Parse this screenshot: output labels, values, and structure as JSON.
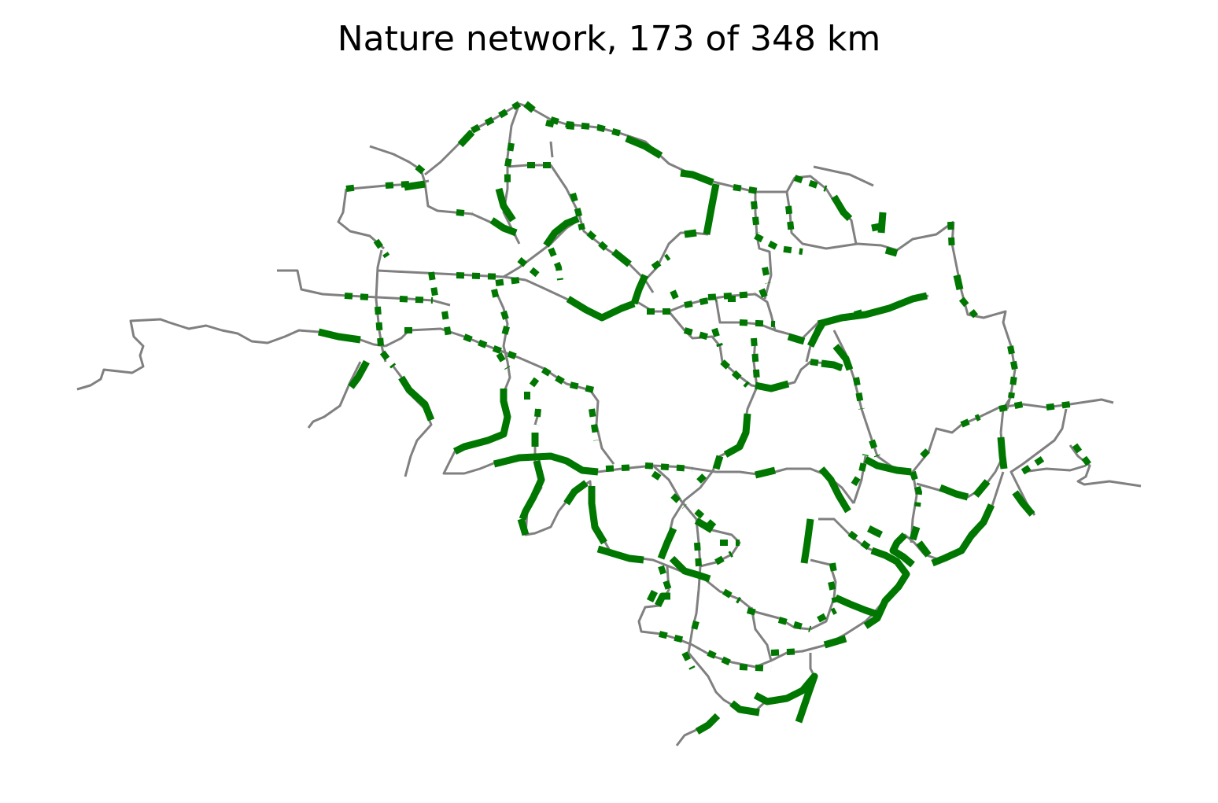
{
  "title": "Nature network, 173 of 348 km",
  "colors": {
    "network": "#808080",
    "nature": "#007700",
    "background": "#ffffff"
  },
  "legend_semantics": {
    "grey_lines": "network",
    "green_lines": "nature"
  }
}
